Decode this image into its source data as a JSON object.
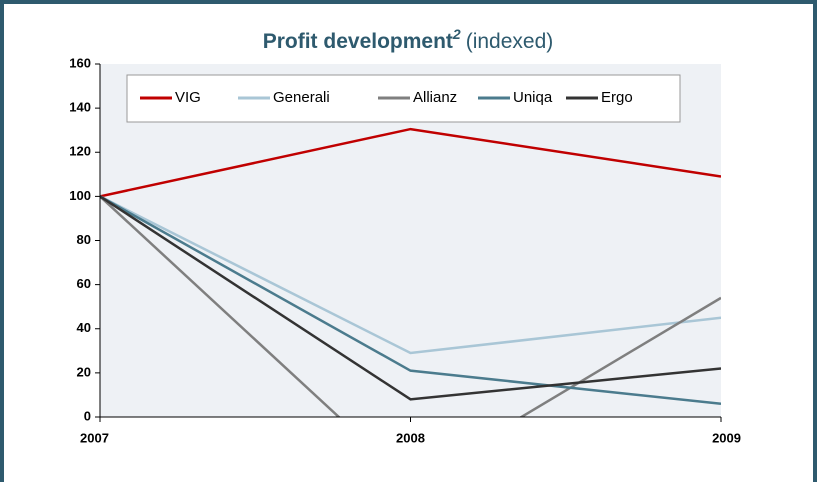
{
  "chart_data": {
    "type": "line",
    "title": "Profit development",
    "title_superscript": "2",
    "subtitle": "(indexed)",
    "categories": [
      "2007",
      "2008",
      "2009"
    ],
    "series": [
      {
        "name": "VIG",
        "color": "#c00000",
        "values": [
          100,
          130.5,
          109
        ]
      },
      {
        "name": "Generali",
        "color": "#a9c6d6",
        "values": [
          100,
          29,
          45
        ]
      },
      {
        "name": "Allianz",
        "color": "#7f7f7f",
        "values": [
          100,
          -30,
          54
        ]
      },
      {
        "name": "Uniqa",
        "color": "#4b7b8d",
        "values": [
          100,
          21,
          6
        ]
      },
      {
        "name": "Ergo",
        "color": "#333333",
        "values": [
          100,
          8,
          22
        ]
      }
    ],
    "ylim": [
      0,
      160
    ],
    "yticks": [
      0,
      20,
      40,
      60,
      80,
      100,
      120,
      140,
      160
    ]
  }
}
